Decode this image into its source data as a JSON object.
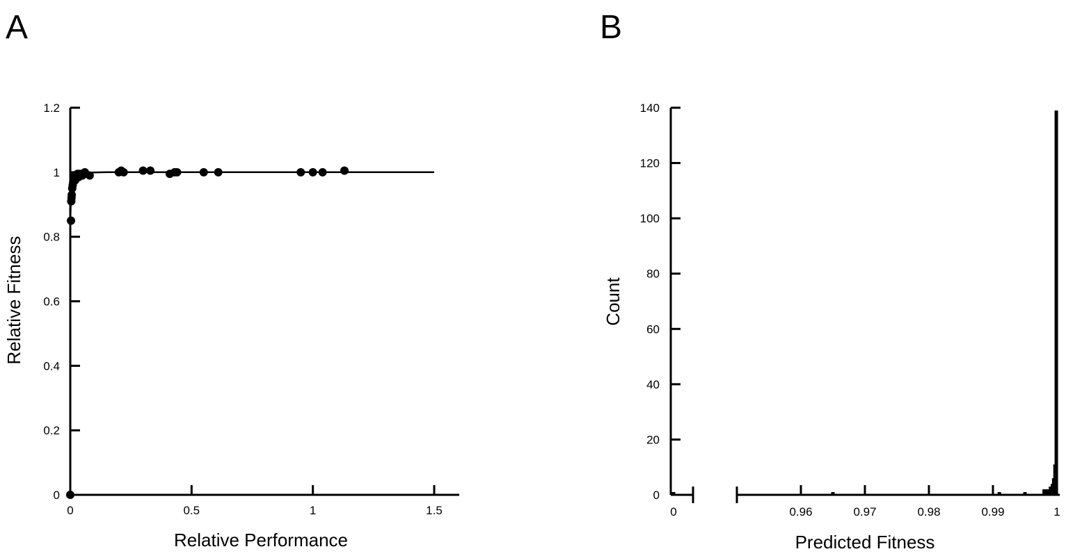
{
  "panels": {
    "a": {
      "letter": "A"
    },
    "b": {
      "letter": "B"
    }
  },
  "chart_data": [
    {
      "panel": "A",
      "type": "scatter",
      "xlabel": "Relative Performance",
      "ylabel": "Relative Fitness",
      "xlim": [
        0,
        1.5
      ],
      "ylim": [
        0,
        1.2
      ],
      "xticks": [
        0,
        0.5,
        1,
        1.5
      ],
      "xtick_labels": [
        "0",
        "0.5",
        "1",
        "1.5"
      ],
      "yticks": [
        0,
        0.2,
        0.4,
        0.6,
        0.8,
        1,
        1.2
      ],
      "ytick_labels": [
        "0",
        "0.2",
        "0.4",
        "0.6",
        "0.8",
        "1",
        "1.2"
      ],
      "grid": false,
      "points": {
        "x": [
          0,
          0.003,
          0.004,
          0.005,
          0.006,
          0.008,
          0.01,
          0.012,
          0.015,
          0.018,
          0.02,
          0.025,
          0.03,
          0.035,
          0.04,
          0.05,
          0.06,
          0.08,
          0.2,
          0.21,
          0.22,
          0.3,
          0.33,
          0.41,
          0.43,
          0.44,
          0.55,
          0.61,
          0.95,
          1.0,
          1.04,
          1.13
        ],
        "y": [
          0,
          0.85,
          0.91,
          0.92,
          0.93,
          0.95,
          0.96,
          0.97,
          0.98,
          0.99,
          0.975,
          0.99,
          0.995,
          0.985,
          0.995,
          0.99,
          1.0,
          0.99,
          1.0,
          1.005,
          1.0,
          1.005,
          1.005,
          0.995,
          1.0,
          1.0,
          1.0,
          1.0,
          1.0,
          1.0,
          1.0,
          1.005
        ]
      },
      "fit_curve": {
        "x": [
          0,
          0.002,
          0.005,
          0.01,
          0.015,
          0.02,
          0.03,
          0.04,
          0.06,
          0.08,
          0.1,
          0.15,
          0.2,
          0.3,
          0.5,
          1.0,
          1.5
        ],
        "y": [
          0.85,
          0.9,
          0.935,
          0.965,
          0.978,
          0.986,
          0.993,
          0.996,
          0.998,
          0.999,
          0.9995,
          1.0,
          1.0,
          1.0,
          1.0,
          1.0,
          1.0
        ]
      }
    },
    {
      "panel": "B",
      "type": "bar",
      "xlabel": "Predicted Fitness",
      "ylabel": "Count",
      "ylim": [
        0,
        140
      ],
      "yticks": [
        0,
        20,
        40,
        60,
        80,
        100,
        120,
        140
      ],
      "ytick_labels": [
        "0",
        "20",
        "40",
        "60",
        "80",
        "100",
        "120",
        "140"
      ],
      "x_axis_broken": true,
      "left_segment": {
        "ticks": [
          0
        ],
        "tick_labels": [
          "0"
        ]
      },
      "right_segment": {
        "xlim": [
          0.95,
          1.0
        ],
        "ticks": [
          0.96,
          0.97,
          0.98,
          0.99,
          1.0
        ],
        "tick_labels": [
          "0.96",
          "0.97",
          "0.98",
          "0.99",
          "1"
        ]
      },
      "grid": false,
      "bins": {
        "x": [
          0,
          0.965,
          0.991,
          0.995,
          0.998,
          0.9985,
          0.999,
          0.9993,
          0.9995,
          0.9997,
          0.9999
        ],
        "values": [
          1,
          1,
          1,
          1,
          2,
          2,
          3,
          4,
          6,
          11,
          139
        ]
      }
    }
  ]
}
